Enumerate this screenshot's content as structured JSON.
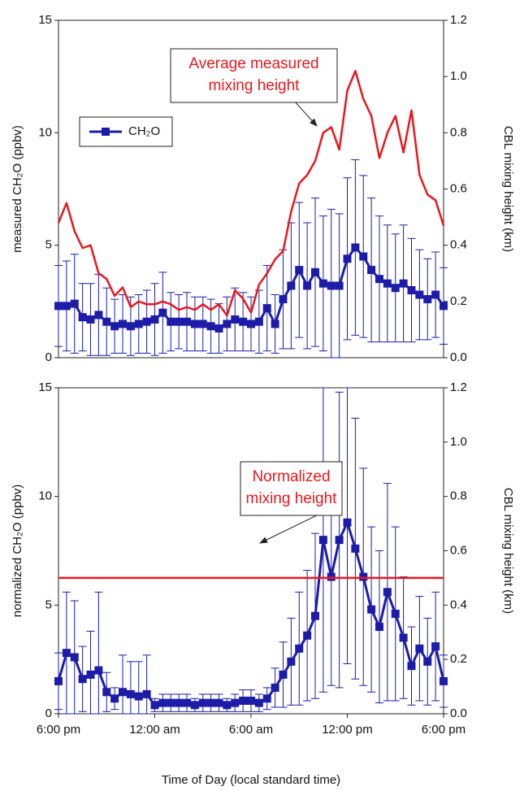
{
  "chart_data": [
    {
      "type": "line",
      "xlim": [
        0,
        24
      ],
      "x": [
        0,
        0.5,
        1,
        1.5,
        2,
        2.5,
        3,
        3.5,
        4,
        4.5,
        5,
        5.5,
        6,
        6.5,
        7,
        7.5,
        8,
        8.5,
        9,
        9.5,
        10,
        10.5,
        11,
        11.5,
        12,
        12.5,
        13,
        13.5,
        14,
        14.5,
        15,
        15.5,
        16,
        16.5,
        17,
        17.5,
        18,
        18.5,
        19,
        19.5,
        20,
        20.5,
        21,
        21.5,
        22,
        22.5,
        23,
        23.5,
        24
      ],
      "ylabel": "measured CH₂O (ppbv)",
      "ylim": [
        0,
        15
      ],
      "yticks": [
        0,
        5,
        10,
        15
      ],
      "y2label": "CBL mixing height (km)",
      "y2lim": [
        0,
        1.2
      ],
      "y2ticks": [
        {
          "value": 0,
          "label": "0.0"
        },
        0.2,
        0.4,
        0.6,
        0.8,
        {
          "value": 1,
          "label": "1.0"
        },
        1.2
      ],
      "legend": "upper left",
      "annotation": [
        "Average measured",
        "mixing height"
      ],
      "series": [
        {
          "name": "CH₂O",
          "color": "#1c1ca8",
          "marker": "square",
          "values": [
            2.3,
            2.3,
            2.4,
            1.8,
            1.7,
            1.9,
            1.6,
            1.4,
            1.5,
            1.4,
            1.5,
            1.6,
            1.7,
            2.0,
            1.6,
            1.6,
            1.6,
            1.5,
            1.5,
            1.4,
            1.3,
            1.5,
            1.7,
            1.6,
            1.5,
            1.6,
            2.2,
            1.5,
            2.6,
            3.2,
            3.9,
            3.2,
            3.8,
            3.3,
            3.2,
            3.2,
            4.4,
            4.9,
            4.5,
            3.9,
            3.5,
            3.3,
            3.1,
            3.3,
            3.0,
            2.8,
            2.6,
            2.8,
            2.3
          ],
          "errors": [
            1.8,
            2.0,
            2.2,
            1.5,
            1.6,
            1.8,
            1.5,
            1.2,
            1.3,
            1.3,
            1.3,
            1.4,
            1.6,
            1.8,
            1.3,
            1.2,
            1.3,
            1.2,
            1.2,
            1.2,
            1.1,
            1.2,
            1.4,
            1.3,
            1.2,
            1.4,
            1.9,
            1.3,
            2.2,
            2.8,
            3.0,
            2.8,
            3.3,
            3.0,
            3.4,
            3.2,
            3.6,
            3.9,
            3.6,
            3.2,
            2.8,
            2.6,
            2.4,
            2.6,
            2.3,
            2.0,
            1.8,
            1.9,
            1.7
          ]
        },
        {
          "color": "#e8181e",
          "axis": "y2",
          "values": [
            0.48,
            0.55,
            0.45,
            0.39,
            0.4,
            0.3,
            0.28,
            0.22,
            0.25,
            0.18,
            0.2,
            0.19,
            0.19,
            0.2,
            0.19,
            0.17,
            0.18,
            0.17,
            0.19,
            0.17,
            0.19,
            0.15,
            0.24,
            0.21,
            0.16,
            0.26,
            0.3,
            0.35,
            0.38,
            0.52,
            0.62,
            0.65,
            0.7,
            0.8,
            0.82,
            0.74,
            0.95,
            1.02,
            0.92,
            0.86,
            0.71,
            0.8,
            0.86,
            0.73,
            0.88,
            0.65,
            0.58,
            0.56,
            0.47
          ]
        }
      ]
    },
    {
      "type": "line",
      "xlim": [
        0,
        24
      ],
      "x": [
        0,
        0.5,
        1,
        1.5,
        2,
        2.5,
        3,
        3.5,
        4,
        4.5,
        5,
        5.5,
        6,
        6.5,
        7,
        7.5,
        8,
        8.5,
        9,
        9.5,
        10,
        10.5,
        11,
        11.5,
        12,
        12.5,
        13,
        13.5,
        14,
        14.5,
        15,
        15.5,
        16,
        16.5,
        17,
        17.5,
        18,
        18.5,
        19,
        19.5,
        20,
        20.5,
        21,
        21.5,
        22,
        22.5,
        23,
        23.5,
        24
      ],
      "xticks": [
        {
          "value": 0,
          "label": "6:00 pm"
        },
        {
          "value": 6,
          "label": "12:00 am"
        },
        {
          "value": 12,
          "label": "6:00 am"
        },
        {
          "value": 18,
          "label": "12:00 pm"
        },
        {
          "value": 24,
          "label": "6:00 pm"
        }
      ],
      "xlabel": "Time of Day (local standard time)",
      "ylabel": "normalized CH₂O (ppbv)",
      "ylim": [
        0,
        15
      ],
      "yticks": [
        0,
        5,
        10,
        15
      ],
      "y2label": "CBL mixing height (km)",
      "y2lim": [
        0,
        1.2
      ],
      "y2ticks": [
        {
          "value": 0,
          "label": "0.0"
        },
        0.2,
        0.4,
        0.6,
        0.8,
        {
          "value": 1,
          "label": "1.0"
        },
        1.2
      ],
      "annotation": [
        "Normalized",
        "mixing height"
      ],
      "series": [
        {
          "color": "#1c1ca8",
          "marker": "square",
          "values": [
            1.5,
            2.8,
            2.6,
            1.6,
            1.8,
            2.0,
            1.0,
            0.7,
            1.0,
            0.9,
            0.8,
            0.9,
            0.4,
            0.5,
            0.5,
            0.5,
            0.5,
            0.4,
            0.5,
            0.5,
            0.5,
            0.4,
            0.5,
            0.6,
            0.6,
            0.5,
            0.7,
            1.2,
            1.8,
            2.4,
            3.0,
            3.6,
            4.5,
            8.0,
            6.3,
            8.0,
            8.8,
            7.6,
            6.3,
            4.8,
            4.0,
            5.6,
            4.6,
            3.5,
            2.2,
            3.0,
            2.4,
            3.1,
            1.5
          ],
          "errors": [
            1.3,
            2.8,
            2.6,
            1.5,
            2.0,
            3.6,
            0.9,
            0.5,
            1.7,
            1.5,
            1.6,
            1.8,
            0.3,
            0.4,
            0.4,
            0.4,
            0.4,
            0.3,
            0.4,
            0.4,
            0.4,
            0.3,
            0.4,
            0.5,
            0.5,
            0.4,
            0.5,
            0.9,
            1.5,
            2.0,
            2.6,
            3.0,
            3.8,
            7.0,
            5.0,
            6.8,
            6.5,
            6.0,
            5.0,
            3.8,
            3.5,
            5.0,
            4.0,
            2.8,
            1.8,
            2.4,
            2.0,
            2.5,
            1.2
          ]
        },
        {
          "color": "#e8181e",
          "axis": "y2",
          "x": [
            0,
            24
          ],
          "values": [
            0.5,
            0.5
          ]
        }
      ]
    }
  ]
}
